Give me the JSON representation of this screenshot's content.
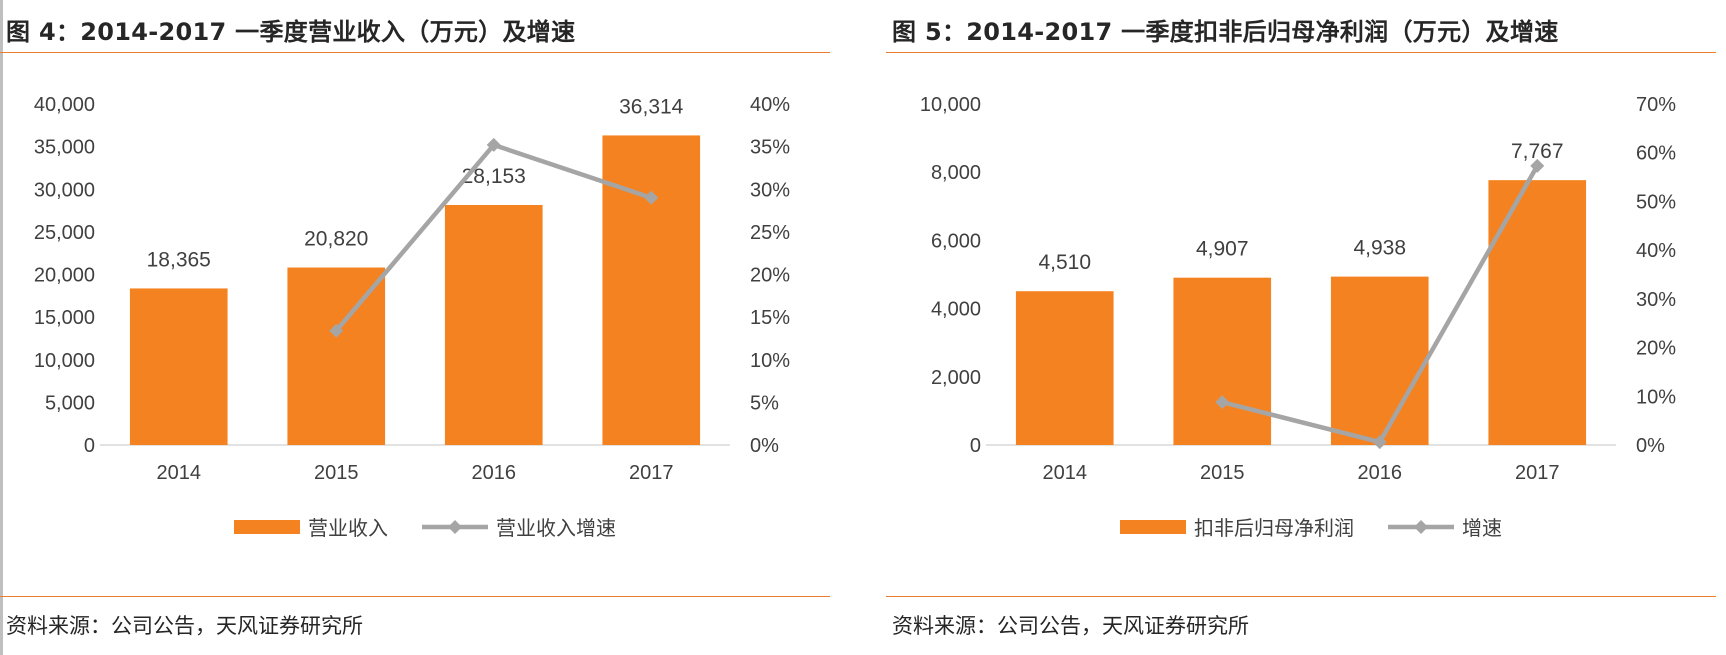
{
  "figures": [
    {
      "title": "图 4：2014-2017 一季度营业收入（万元）及增速",
      "source": "资料来源：公司公告，天风证券研究所"
    },
    {
      "title": "图 5：2014-2017 一季度扣非后归母净利润（万元）及增速",
      "source": "资料来源：公司公告，天风证券研究所"
    }
  ],
  "chart_data": [
    {
      "type": "bar",
      "title": "图 4：2014-2017 一季度营业收入（万元）及增速",
      "categories": [
        "2014",
        "2015",
        "2016",
        "2017"
      ],
      "series": [
        {
          "name": "营业收入",
          "type": "bar",
          "axis": "left",
          "values": [
            18365,
            20820,
            28153,
            36314
          ],
          "labels": [
            "18,365",
            "20,820",
            "28,153",
            "36,314"
          ],
          "color": "#f58220"
        },
        {
          "name": "营业收入增速",
          "type": "line",
          "axis": "right",
          "values": [
            null,
            13.4,
            35.2,
            29.0
          ],
          "color": "#a5a5a5"
        }
      ],
      "ylim": [
        0,
        40000
      ],
      "y_ticks": [
        "0",
        "5,000",
        "10,000",
        "15,000",
        "20,000",
        "25,000",
        "30,000",
        "35,000",
        "40,000"
      ],
      "y2lim": [
        0,
        40
      ],
      "y2_ticks": [
        "0%",
        "5%",
        "10%",
        "15%",
        "20%",
        "25%",
        "30%",
        "35%",
        "40%"
      ],
      "grid": false,
      "legend": "bottom"
    },
    {
      "type": "bar",
      "title": "图 5：2014-2017 一季度扣非后归母净利润（万元）及增速",
      "categories": [
        "2014",
        "2015",
        "2016",
        "2017"
      ],
      "series": [
        {
          "name": "扣非后归母净利润",
          "type": "bar",
          "axis": "left",
          "values": [
            4510,
            4907,
            4938,
            7767
          ],
          "labels": [
            "4,510",
            "4,907",
            "4,938",
            "7,767"
          ],
          "color": "#f58220"
        },
        {
          "name": "增速",
          "type": "line",
          "axis": "right",
          "values": [
            null,
            8.8,
            0.6,
            57.3
          ],
          "color": "#a5a5a5"
        }
      ],
      "ylim": [
        0,
        10000
      ],
      "y_ticks": [
        "0",
        "2,000",
        "4,000",
        "6,000",
        "8,000",
        "10,000"
      ],
      "y2lim": [
        0,
        70
      ],
      "y2_ticks": [
        "0%",
        "10%",
        "20%",
        "30%",
        "40%",
        "50%",
        "60%",
        "70%"
      ],
      "grid": false,
      "legend": "bottom"
    }
  ]
}
